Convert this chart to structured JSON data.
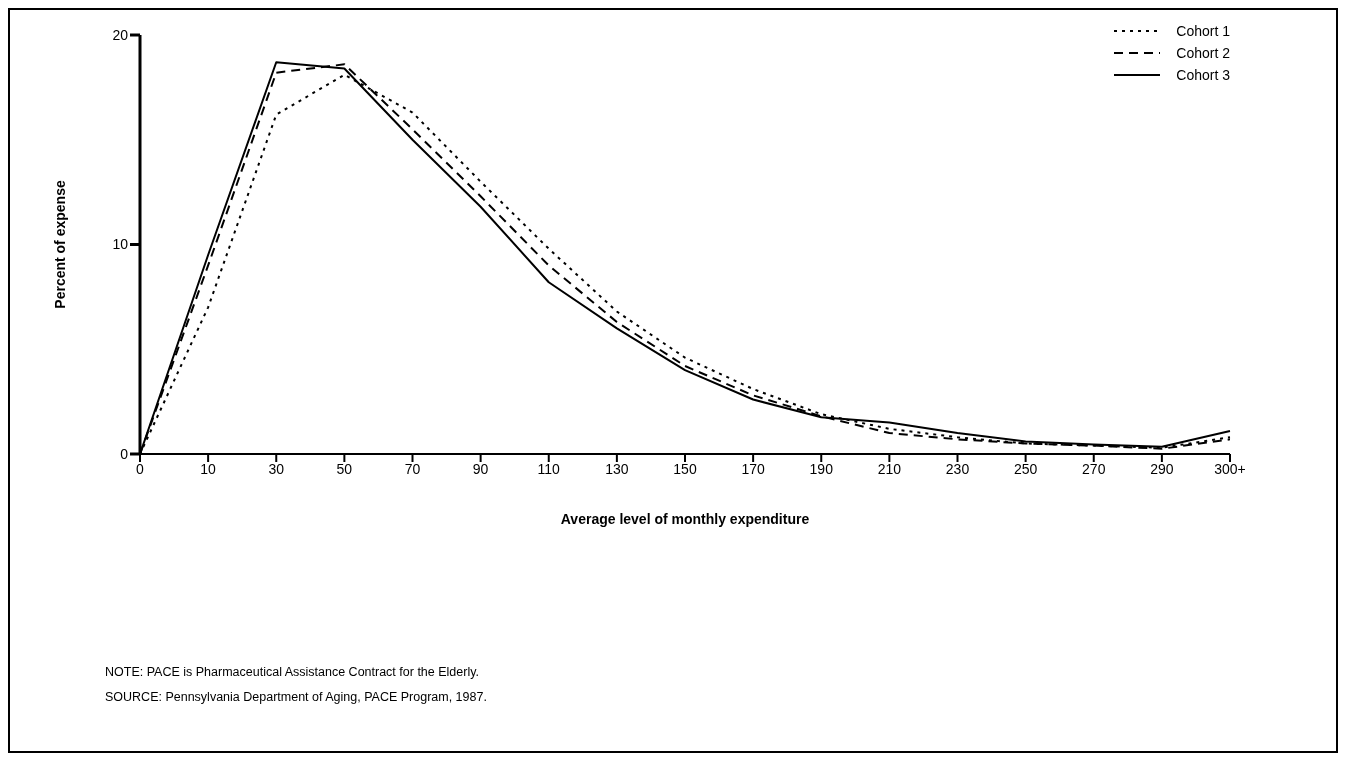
{
  "chart_data": {
    "type": "line",
    "xlabel": "Average level of monthly expenditure",
    "ylabel": "Percent of expense",
    "categories": [
      "0",
      "10",
      "30",
      "50",
      "70",
      "90",
      "110",
      "130",
      "150",
      "170",
      "190",
      "210",
      "230",
      "250",
      "270",
      "290",
      "300+"
    ],
    "series": [
      {
        "name": "Cohort 1",
        "color": "#000000",
        "line_style": "dotted",
        "values": [
          0,
          7,
          16.2,
          18.1,
          16.3,
          13,
          9.8,
          6.8,
          4.6,
          3.1,
          1.9,
          1.2,
          0.8,
          0.5,
          0.4,
          0.3,
          0.8
        ]
      },
      {
        "name": "Cohort 2",
        "color": "#000000",
        "line_style": "dashed",
        "values": [
          0,
          9,
          18.2,
          18.6,
          15.5,
          12.3,
          9,
          6.3,
          4.2,
          2.8,
          1.8,
          1,
          0.7,
          0.5,
          0.4,
          0.25,
          0.7
        ]
      },
      {
        "name": "Cohort 3",
        "color": "#000000",
        "line_style": "solid",
        "values": [
          0,
          9.5,
          18.7,
          18.4,
          15,
          11.8,
          8.2,
          6,
          4,
          2.6,
          1.75,
          1.5,
          1,
          0.6,
          0.45,
          0.35,
          1.1
        ]
      }
    ],
    "ylim": [
      0,
      20
    ],
    "yticks": [
      0,
      10,
      20
    ],
    "grid": false,
    "legend": "top right",
    "marker": "none",
    "annotations": [
      "NOTE:  PACE is Pharmaceutical Assistance Contract for the Elderly.",
      "SOURCE:  Pennsylvania Department of Aging, PACE Program, 1987."
    ]
  }
}
